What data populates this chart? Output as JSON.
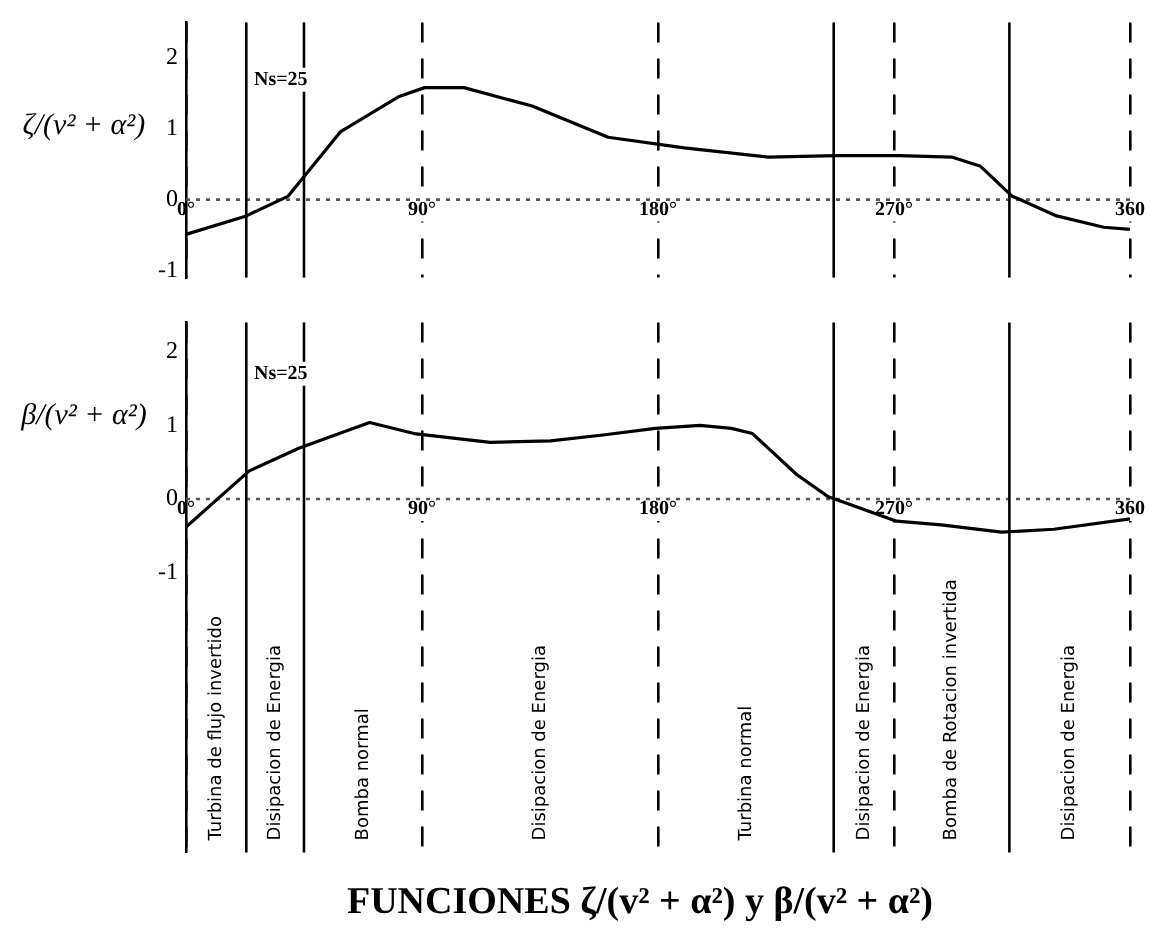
{
  "chart_data": [
    {
      "type": "line",
      "ylabel": "ζ/(v² + α²)",
      "xlim": [
        0,
        360
      ],
      "ylim": [
        -1.1,
        2.5
      ],
      "xticks": [
        {
          "value": 0,
          "label": "0°"
        },
        {
          "value": 90,
          "label": "90°"
        },
        {
          "value": 180,
          "label": "180°"
        },
        {
          "value": 270,
          "label": "270°"
        },
        360
      ],
      "yticks": [
        -1,
        0,
        1,
        2
      ],
      "grid": "x",
      "legend": false,
      "marker": "none",
      "line_style": "solid",
      "series": [
        {
          "color": "#000000",
          "x": [
            0,
            23,
            39,
            59,
            81,
            91,
            106,
            132,
            161,
            190,
            222,
            248,
            272,
            292,
            303,
            315,
            332,
            350,
            360
          ],
          "values": [
            -0.49,
            -0.23,
            0.05,
            0.96,
            1.45,
            1.58,
            1.58,
            1.32,
            0.88,
            0.73,
            0.6,
            0.62,
            0.62,
            0.6,
            0.47,
            0.05,
            -0.23,
            -0.39,
            -0.42
          ]
        }
      ],
      "ref_lines": [
        {
          "axis": "y",
          "value": 0,
          "line_style": "dotted",
          "color": "#555555"
        },
        {
          "axis": "x",
          "value": 23,
          "color": "#000000"
        },
        {
          "axis": "x",
          "value": 45,
          "color": "#000000"
        },
        {
          "axis": "x",
          "value": 247,
          "color": "#000000"
        },
        {
          "axis": "x",
          "value": 314,
          "color": "#000000"
        }
      ],
      "annotations": [
        "Ns=25"
      ]
    },
    {
      "type": "line",
      "ylabel": "β/(v² + α²)",
      "title": "FUNCIONES ζ/(v² + α²) y β/(v² + α²)",
      "xlim": [
        0,
        360
      ],
      "ylim": [
        -4.8,
        2.4
      ],
      "xticks": [
        {
          "value": 0,
          "label": "0°"
        },
        {
          "value": 90,
          "label": "90°"
        },
        {
          "value": 180,
          "label": "180°"
        },
        {
          "value": 270,
          "label": "270°"
        },
        360
      ],
      "yticks": [
        -1,
        0,
        1,
        2
      ],
      "grid": "x",
      "legend": false,
      "marker": "none",
      "line_style": "solid",
      "series": [
        {
          "color": "#000000",
          "x": [
            0,
            24,
            43,
            70,
            87,
            116,
            139,
            159,
            179,
            196,
            208,
            216,
            233,
            245,
            271,
            288,
            311,
            331,
            360
          ],
          "values": [
            -0.38,
            0.38,
            0.69,
            1.04,
            0.89,
            0.77,
            0.79,
            0.87,
            0.96,
            1.0,
            0.96,
            0.89,
            0.33,
            0.03,
            -0.3,
            -0.35,
            -0.45,
            -0.41,
            -0.27
          ]
        }
      ],
      "ref_lines": [
        {
          "axis": "y",
          "value": 0,
          "line_style": "dotted",
          "color": "#555555"
        },
        {
          "axis": "x",
          "value": 23,
          "color": "#000000"
        },
        {
          "axis": "x",
          "value": 45,
          "color": "#000000"
        },
        {
          "axis": "x",
          "value": 247,
          "color": "#000000"
        },
        {
          "axis": "x",
          "value": 314,
          "color": "#000000"
        }
      ],
      "annotations": [
        "Ns=25",
        "Turbina de flujo invertido",
        "Disipacion de Energia",
        "Bomba normal",
        "Disipacion de Energia",
        "Turbina normal",
        "Disipacion de Energia",
        "Bomba de Rotacion invertida",
        "Disipacion de Energia"
      ]
    }
  ]
}
